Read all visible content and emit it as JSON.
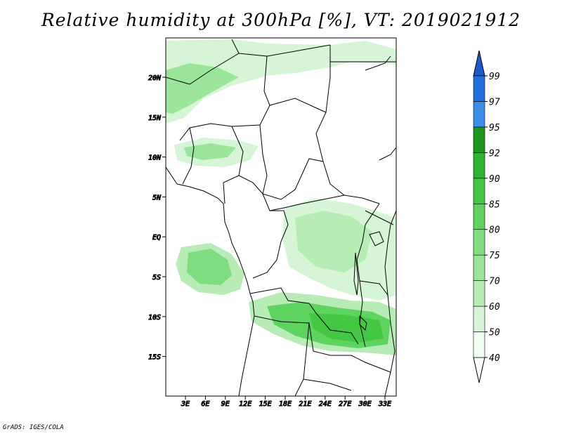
{
  "title": "Relative humidity at 300hPa [%], VT: 2019021912",
  "credit": "GrADS: IGES/COLA",
  "lat_labels": [
    "20N",
    "15N",
    "10N",
    "5N",
    "EQ",
    "5S",
    "10S",
    "15S"
  ],
  "lon_labels": [
    "3E",
    "6E",
    "9E",
    "12E",
    "15E",
    "18E",
    "21E",
    "24E",
    "27E",
    "30E",
    "33E"
  ],
  "colorbar": {
    "levels": [
      "40",
      "50",
      "60",
      "70",
      "75",
      "80",
      "85",
      "90",
      "92",
      "95",
      "97",
      "99"
    ],
    "colors": [
      "#f0fff0",
      "#d6f5d6",
      "#b7ecb7",
      "#9be59b",
      "#7edd7e",
      "#5fd35f",
      "#44c844",
      "#2eb42e",
      "#1a961a",
      "#3a8ee8",
      "#1f6fdc",
      "#1a5acc"
    ]
  },
  "map_colors": {
    "land_border": "#000000",
    "light_green": "#d6f5d6",
    "mid_green": "#9be59b",
    "strong_green": "#5fd35f"
  }
}
